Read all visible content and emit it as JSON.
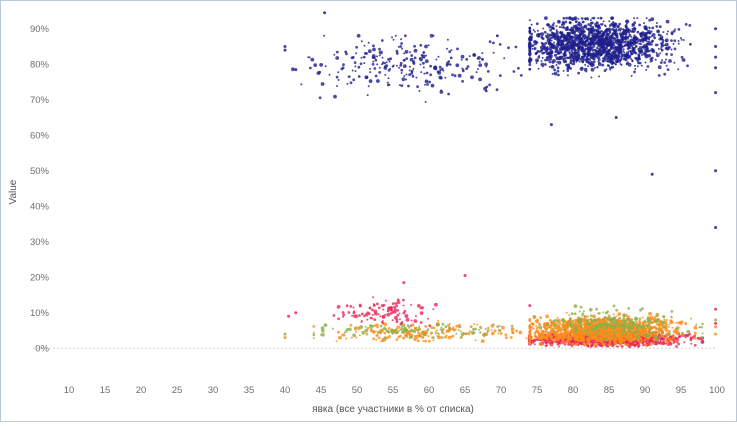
{
  "chart_data": {
    "type": "scatter",
    "xlabel": "явка (все участники в % от списка)",
    "ylabel": "Value",
    "xlim": [
      5,
      100
    ],
    "ylim": [
      -5,
      95
    ],
    "x_ticks": [
      {
        "value": 10,
        "label": "10"
      },
      {
        "value": 15,
        "label": "15"
      },
      {
        "value": 20,
        "label": "20"
      },
      {
        "value": 25,
        "label": "25"
      },
      {
        "value": 30,
        "label": "30"
      },
      {
        "value": 35,
        "label": "35"
      },
      {
        "value": 40,
        "label": "40"
      },
      {
        "value": 45,
        "label": "45"
      },
      {
        "value": 50,
        "label": "50"
      },
      {
        "value": 55,
        "label": "55"
      },
      {
        "value": 60,
        "label": "60"
      },
      {
        "value": 65,
        "label": "65"
      },
      {
        "value": 70,
        "label": "70"
      },
      {
        "value": 75,
        "label": "75"
      },
      {
        "value": 80,
        "label": "80"
      },
      {
        "value": 85,
        "label": "85"
      },
      {
        "value": 90,
        "label": "90"
      },
      {
        "value": 95,
        "label": "95"
      },
      {
        "value": 100,
        "label": "100"
      }
    ],
    "y_ticks": [
      {
        "value": 0,
        "label": "0%"
      },
      {
        "value": 10,
        "label": "10%"
      },
      {
        "value": 20,
        "label": "20%"
      },
      {
        "value": 30,
        "label": "30%"
      },
      {
        "value": 40,
        "label": "40%"
      },
      {
        "value": 50,
        "label": "50%"
      },
      {
        "value": 60,
        "label": "60%"
      },
      {
        "value": 70,
        "label": "70%"
      },
      {
        "value": 80,
        "label": "80%"
      },
      {
        "value": 90,
        "label": "90%"
      }
    ],
    "grid": false,
    "zero_line": true,
    "series": [
      {
        "color": "#1f1f8c",
        "clusters": [
          {
            "x_min": 74,
            "x_max": 97,
            "x_center": 83,
            "y_min": 76,
            "y_max": 93,
            "y_center": 85.5,
            "count": 1500
          },
          {
            "x_min": 40,
            "x_max": 74,
            "x_center": 57,
            "y_min": 69,
            "y_max": 88,
            "y_center": 80,
            "count": 260
          }
        ],
        "points": [
          {
            "x": 45.5,
            "y": 94.5
          },
          {
            "x": 40,
            "y": 85
          },
          {
            "x": 40,
            "y": 84
          },
          {
            "x": 41.5,
            "y": 78.5
          },
          {
            "x": 77,
            "y": 63
          },
          {
            "x": 86,
            "y": 65
          },
          {
            "x": 91,
            "y": 49
          },
          {
            "x": 99.8,
            "y": 50
          },
          {
            "x": 99.8,
            "y": 34
          },
          {
            "x": 99.8,
            "y": 90
          },
          {
            "x": 99.8,
            "y": 85
          },
          {
            "x": 99.8,
            "y": 82
          },
          {
            "x": 99.8,
            "y": 79
          },
          {
            "x": 99.8,
            "y": 72
          }
        ]
      },
      {
        "color": "#e8285a",
        "clusters": [
          {
            "x_min": 74,
            "x_max": 98,
            "x_center": 85,
            "y_min": 0.5,
            "y_max": 5,
            "y_center": 2.5,
            "count": 1000
          },
          {
            "x_min": 46,
            "x_max": 61,
            "x_center": 54,
            "y_min": 6,
            "y_max": 16,
            "y_center": 10,
            "count": 110
          }
        ],
        "points": [
          {
            "x": 40.5,
            "y": 9
          },
          {
            "x": 41.5,
            "y": 10
          },
          {
            "x": 56.5,
            "y": 18.5
          },
          {
            "x": 65,
            "y": 20.5
          },
          {
            "x": 74,
            "y": 12
          },
          {
            "x": 99.8,
            "y": 11
          },
          {
            "x": 99.8,
            "y": 7
          }
        ]
      },
      {
        "color": "#ff8c1a",
        "clusters": [
          {
            "x_min": 74,
            "x_max": 97,
            "x_center": 84,
            "y_min": 1,
            "y_max": 10,
            "y_center": 5,
            "count": 1400
          },
          {
            "x_min": 44,
            "x_max": 74,
            "x_center": 60,
            "y_min": 2,
            "y_max": 8,
            "y_center": 4.5,
            "count": 200
          }
        ],
        "points": [
          {
            "x": 40,
            "y": 3
          },
          {
            "x": 99.8,
            "y": 6
          },
          {
            "x": 99.8,
            "y": 4
          }
        ]
      },
      {
        "color": "#8ab04a",
        "clusters": [
          {
            "x_min": 74,
            "x_max": 98,
            "x_center": 86,
            "y_min": 2,
            "y_max": 12,
            "y_center": 6.5,
            "count": 260
          },
          {
            "x_min": 44,
            "x_max": 74,
            "x_center": 58,
            "y_min": 3,
            "y_max": 8,
            "y_center": 5,
            "count": 100
          }
        ],
        "points": [
          {
            "x": 40,
            "y": 4
          },
          {
            "x": 99.8,
            "y": 8
          }
        ]
      }
    ]
  }
}
